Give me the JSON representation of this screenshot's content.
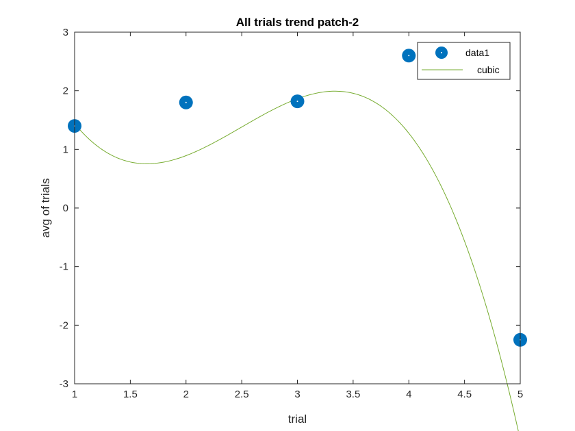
{
  "chart_data": {
    "type": "scatter",
    "title": "All trials trend patch-2",
    "xlabel": "trial",
    "ylabel": "avg of trials",
    "xlim": [
      1,
      5
    ],
    "ylim": [
      -3,
      3
    ],
    "xticks": [
      1,
      1.5,
      2,
      2.5,
      3,
      3.5,
      4,
      4.5,
      5
    ],
    "yticks": [
      -3,
      -2,
      -1,
      0,
      1,
      2,
      3
    ],
    "grid": false,
    "legend_position": "top-right",
    "series": [
      {
        "name": "data1",
        "kind": "scatter",
        "color": "#0072BD",
        "x": [
          1,
          2,
          3,
          4,
          5
        ],
        "y": [
          1.4,
          1.8,
          1.82,
          2.6,
          -2.25
        ]
      },
      {
        "name": "cubic",
        "kind": "line",
        "color": "#77AC30",
        "fit": "cubic",
        "coefficients": [
          -0.513,
          3.837,
          -8.467,
          6.583
        ]
      }
    ]
  }
}
